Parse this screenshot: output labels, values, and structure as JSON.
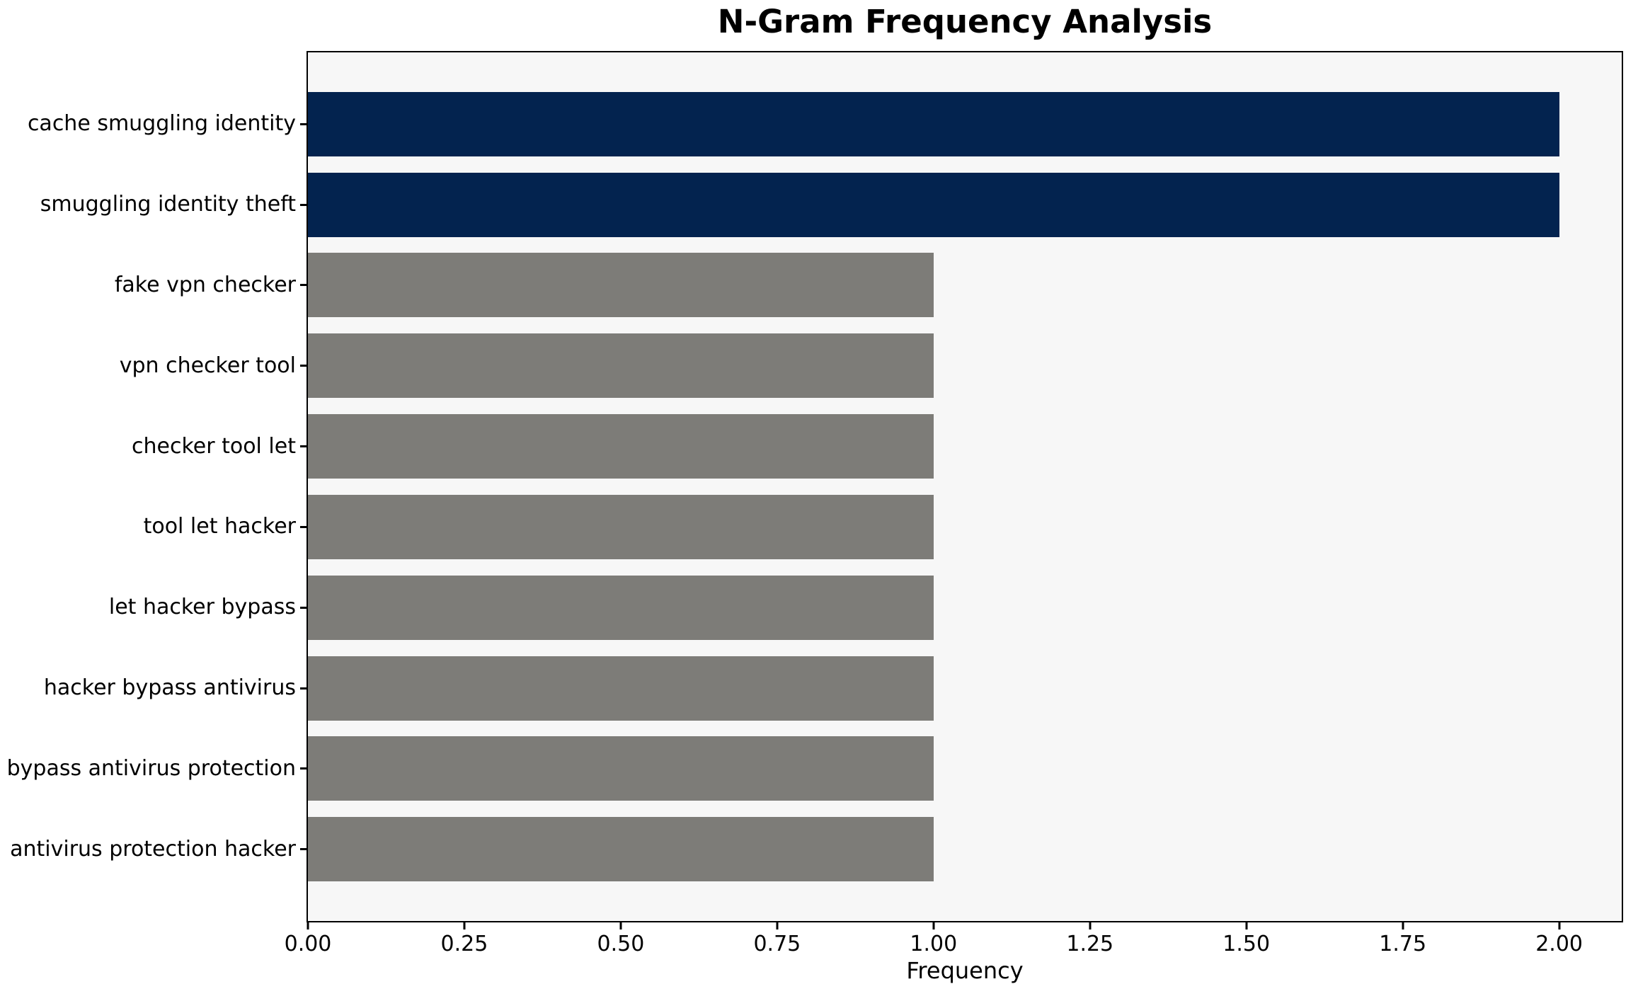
{
  "chart_data": {
    "type": "bar",
    "orientation": "horizontal",
    "title": "N-Gram Frequency Analysis",
    "xlabel": "Frequency",
    "categories": [
      "cache smuggling identity",
      "smuggling identity theft",
      "fake vpn checker",
      "vpn checker tool",
      "checker tool let",
      "tool let hacker",
      "let hacker bypass",
      "hacker bypass antivirus",
      "bypass antivirus protection",
      "antivirus protection hacker"
    ],
    "values": [
      2,
      2,
      1,
      1,
      1,
      1,
      1,
      1,
      1,
      1
    ],
    "bar_colors": [
      "#03234f",
      "#03234f",
      "#7d7c78",
      "#7d7c78",
      "#7d7c78",
      "#7d7c78",
      "#7d7c78",
      "#7d7c78",
      "#7d7c78",
      "#7d7c78"
    ],
    "xlim": [
      0,
      2.1
    ],
    "xticks": [
      "0.00",
      "0.25",
      "0.50",
      "0.75",
      "1.00",
      "1.25",
      "1.50",
      "1.75",
      "2.00"
    ],
    "colors": {
      "highlight": "#03234f",
      "default_bar": "#7d7c78",
      "plot_background": "#f7f7f7",
      "figure_background": "#ffffff",
      "axis": "#000000"
    },
    "grid": false,
    "legend_position": "none",
    "bar_height_fraction": 0.8
  }
}
